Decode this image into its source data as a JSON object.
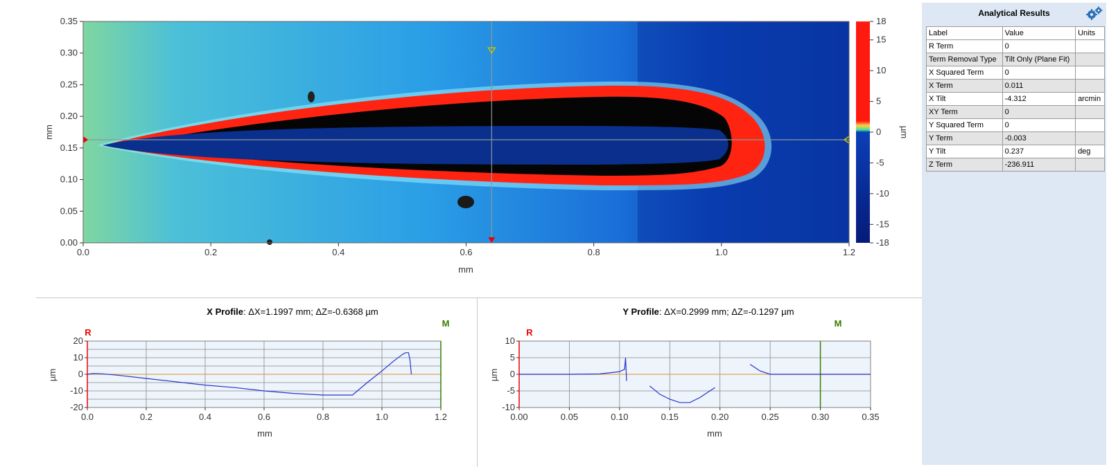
{
  "map": {
    "x_unit": "mm",
    "y_unit": "mm",
    "x_ticks": [
      "0.0",
      "0.2",
      "0.4",
      "0.6",
      "0.8",
      "1.0",
      "1.2"
    ],
    "y_ticks": [
      "0.35",
      "0.30",
      "0.25",
      "0.20",
      "0.15",
      "0.10",
      "0.05",
      "0.00"
    ],
    "colorbar_ticks": [
      "18",
      "15",
      "10",
      "5",
      "0",
      "-5",
      "-10",
      "-15",
      "-18"
    ],
    "colorbar_unit": "µm",
    "cursor_x_mm": 0.64,
    "cursor_y_mm": 0.163
  },
  "x_profile": {
    "title_bold": "X Profile",
    "title_rest": ": ΔX=1.1997 mm; ΔZ=-0.6368 µm",
    "marker_r": "R",
    "marker_m": "M",
    "ylabel": "µm",
    "xlabel": "mm",
    "x_ticks": [
      "0.0",
      "0.2",
      "0.4",
      "0.6",
      "0.8",
      "1.0",
      "1.2"
    ],
    "y_ticks": [
      "20",
      "10",
      "0",
      "-10",
      "-20"
    ]
  },
  "y_profile": {
    "title_bold": "Y Profile",
    "title_rest": ": ΔX=0.2999 mm; ΔZ=-0.1297 µm",
    "marker_r": "R",
    "marker_m": "M",
    "ylabel": "µm",
    "xlabel": "mm",
    "x_ticks": [
      "0.00",
      "0.05",
      "0.10",
      "0.15",
      "0.20",
      "0.25",
      "0.30",
      "0.35"
    ],
    "y_ticks": [
      "10",
      "5",
      "0",
      "-5",
      "-10"
    ]
  },
  "chart_data": [
    {
      "type": "line",
      "xlabel": "mm",
      "ylabel": "µm",
      "xlim": [
        0,
        1.2
      ],
      "ylim": [
        -20,
        20
      ],
      "grid": true,
      "series": [
        {
          "x": [
            0,
            0.02,
            0.05,
            0.1,
            0.2,
            0.3,
            0.4,
            0.5,
            0.6,
            0.7,
            0.8,
            0.85,
            0.9,
            0.95,
            1.0,
            1.04,
            1.07,
            1.08,
            1.09,
            1.095,
            1.1
          ],
          "values": [
            0,
            0.5,
            0.3,
            -0.5,
            -2.5,
            -4.5,
            -6.5,
            -8,
            -10,
            -11.5,
            -12.5,
            -12.5,
            -12.5,
            -5,
            2,
            8,
            12,
            13,
            13,
            9,
            0
          ]
        }
      ]
    },
    {
      "type": "line",
      "xlabel": "mm",
      "ylabel": "µm",
      "xlim": [
        0,
        0.35
      ],
      "ylim": [
        -10,
        10
      ],
      "grid": true,
      "series": [
        {
          "x": [
            0,
            0.05,
            0.08,
            0.1,
            0.105,
            0.106,
            0.107,
            0.108,
            0.13,
            0.14,
            0.15,
            0.16,
            0.17,
            0.18,
            0.19,
            0.195,
            0.228,
            0.23,
            0.24,
            0.25,
            0.3,
            0.35
          ],
          "values": [
            0,
            0,
            0.1,
            0.8,
            1.5,
            5,
            -2,
            null,
            -3.5,
            -6,
            -7.5,
            -8.5,
            -8.5,
            -7,
            -5,
            -4,
            null,
            3,
            1,
            0,
            0,
            0
          ]
        }
      ]
    }
  ],
  "results": {
    "title": "Analytical Results",
    "headers": [
      "Label",
      "Value",
      "Units"
    ],
    "rows": [
      {
        "label": "R Term",
        "value": "0",
        "units": ""
      },
      {
        "label": "Term Removal Type",
        "value": "Tilt Only (Plane Fit)",
        "units": ""
      },
      {
        "label": "X Squared Term",
        "value": "0",
        "units": ""
      },
      {
        "label": "X Term",
        "value": "0.011",
        "units": ""
      },
      {
        "label": "X Tilt",
        "value": "-4.312",
        "units": "arcmin"
      },
      {
        "label": "XY Term",
        "value": "0",
        "units": ""
      },
      {
        "label": "Y Squared Term",
        "value": "0",
        "units": ""
      },
      {
        "label": "Y Term",
        "value": "-0.003",
        "units": ""
      },
      {
        "label": "Y Tilt",
        "value": "0.237",
        "units": "deg"
      },
      {
        "label": "Z Term",
        "value": "-236.911",
        "units": ""
      }
    ]
  }
}
